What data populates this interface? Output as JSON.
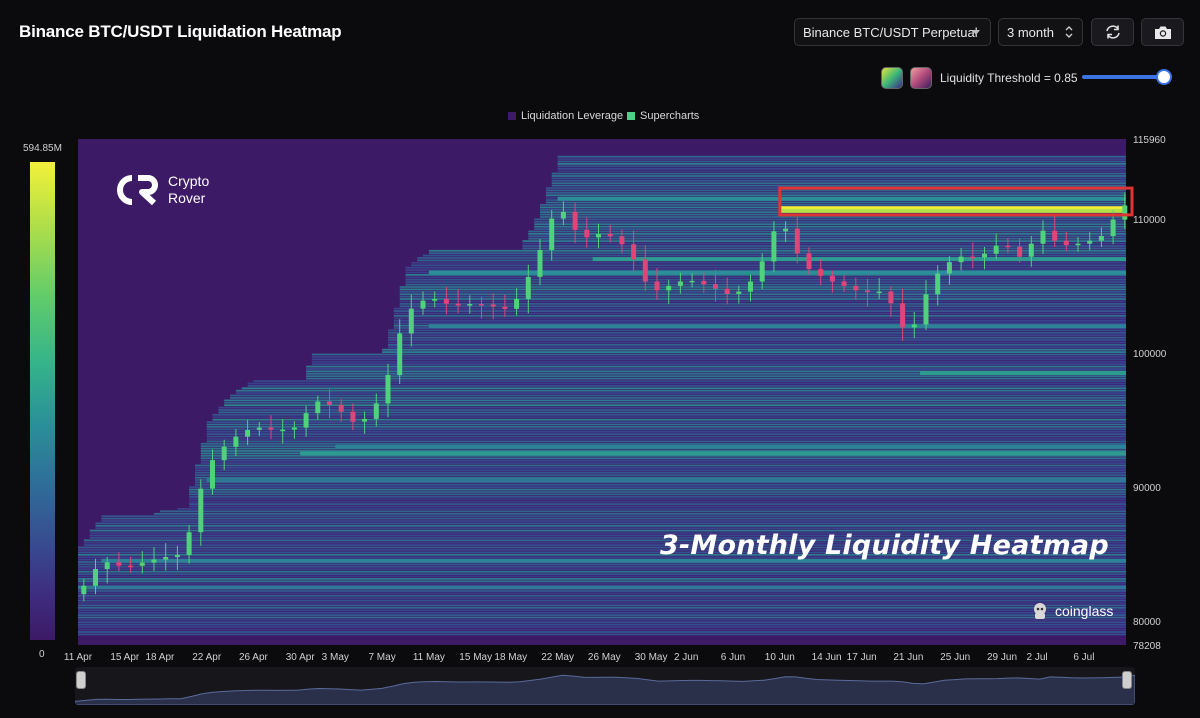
{
  "header": {
    "title": "Binance BTC/USDT Liquidation Heatmap",
    "exchange_select": "Binance BTC/USDT Perpetual",
    "range_select": "3 month",
    "refresh_icon": "refresh-icon",
    "camera_icon": "camera-icon"
  },
  "threshold": {
    "label": "Liquidity Threshold = 0.85",
    "value": 0.85,
    "slider_fraction": 0.95
  },
  "legend": {
    "items": [
      {
        "label": "Liquidation Leverage",
        "color": "#3c1a66"
      },
      {
        "label": "Supercharts",
        "color": "#4fcf8a"
      }
    ]
  },
  "colorbar": {
    "max_label": "594.85M",
    "min_label": "0"
  },
  "overlays": {
    "brand_top": "Crypto",
    "brand_bottom": "Rover",
    "heading": "3-Monthly Liquidity Heatmap",
    "watermark": "coinglass"
  },
  "chart_data": {
    "type": "heatmap",
    "title": "",
    "xlabel": "",
    "ylabel": "",
    "x_tick_labels": [
      "11 Apr",
      "15 Apr",
      "18 Apr",
      "22 Apr",
      "26 Apr",
      "30 Apr",
      "3 May",
      "7 May",
      "11 May",
      "15 May",
      "18 May",
      "22 May",
      "26 May",
      "30 May",
      "2 Jun",
      "6 Jun",
      "10 Jun",
      "14 Jun",
      "17 Jun",
      "21 Jun",
      "25 Jun",
      "29 Jun",
      "2 Jul",
      "6 Jul"
    ],
    "y_tick_labels": [
      "115960",
      "110000",
      "100000",
      "90000",
      "80000",
      "78208"
    ],
    "ylim": [
      78208,
      115960
    ],
    "colorscale": {
      "min": 0,
      "max": "594.85M",
      "low_color": "#3c1a66",
      "high_color": "#f2f13a"
    },
    "price_close_series": [
      {
        "date": "11 Apr",
        "close": 82000
      },
      {
        "date": "13 Apr",
        "close": 84500
      },
      {
        "date": "15 Apr",
        "close": 84000
      },
      {
        "date": "18 Apr",
        "close": 84700
      },
      {
        "date": "20 Apr",
        "close": 85000
      },
      {
        "date": "22 Apr",
        "close": 91500
      },
      {
        "date": "24 Apr",
        "close": 93500
      },
      {
        "date": "26 Apr",
        "close": 94500
      },
      {
        "date": "28 Apr",
        "close": 94200
      },
      {
        "date": "30 Apr",
        "close": 94500
      },
      {
        "date": "1 May",
        "close": 96500
      },
      {
        "date": "3 May",
        "close": 96000
      },
      {
        "date": "5 May",
        "close": 94500
      },
      {
        "date": "7 May",
        "close": 96800
      },
      {
        "date": "9 May",
        "close": 103000
      },
      {
        "date": "11 May",
        "close": 104200
      },
      {
        "date": "13 May",
        "close": 103500
      },
      {
        "date": "15 May",
        "close": 103700
      },
      {
        "date": "18 May",
        "close": 103200
      },
      {
        "date": "20 May",
        "close": 106500
      },
      {
        "date": "22 May",
        "close": 111200
      },
      {
        "date": "24 May",
        "close": 108500
      },
      {
        "date": "26 May",
        "close": 109000
      },
      {
        "date": "28 May",
        "close": 107800
      },
      {
        "date": "30 May",
        "close": 104500
      },
      {
        "date": "2 Jun",
        "close": 105500
      },
      {
        "date": "4 Jun",
        "close": 105000
      },
      {
        "date": "6 Jun",
        "close": 104200
      },
      {
        "date": "8 Jun",
        "close": 105700
      },
      {
        "date": "10 Jun",
        "close": 110200
      },
      {
        "date": "12 Jun",
        "close": 106500
      },
      {
        "date": "14 Jun",
        "close": 105500
      },
      {
        "date": "17 Jun",
        "close": 104500
      },
      {
        "date": "19 Jun",
        "close": 104600
      },
      {
        "date": "21 Jun",
        "close": 101000
      },
      {
        "date": "23 Jun",
        "close": 105500
      },
      {
        "date": "25 Jun",
        "close": 107200
      },
      {
        "date": "27 Jun",
        "close": 107100
      },
      {
        "date": "29 Jun",
        "close": 108300
      },
      {
        "date": "1 Jul",
        "close": 106800
      },
      {
        "date": "2 Jul",
        "close": 109500
      },
      {
        "date": "4 Jul",
        "close": 108000
      },
      {
        "date": "6 Jul",
        "close": 108200
      },
      {
        "date": "8 Jul",
        "close": 108900
      },
      {
        "date": "9 Jul",
        "close": 111000
      }
    ],
    "liquidation_bands": [
      {
        "price": 110800,
        "intensity": 1.0,
        "from": "10 Jun",
        "to": "9 Jul"
      },
      {
        "price": 110600,
        "intensity": 0.92,
        "from": "10 Jun",
        "to": "9 Jul"
      },
      {
        "price": 111500,
        "intensity": 0.55,
        "from": "22 May",
        "to": "9 Jul"
      },
      {
        "price": 107000,
        "intensity": 0.6,
        "from": "25 May",
        "to": "9 Jul"
      },
      {
        "price": 106000,
        "intensity": 0.55,
        "from": "11 May",
        "to": "9 Jul"
      },
      {
        "price": 102000,
        "intensity": 0.5,
        "from": "11 May",
        "to": "9 Jul"
      },
      {
        "price": 98500,
        "intensity": 0.6,
        "from": "22 Jun",
        "to": "9 Jul"
      },
      {
        "price": 93000,
        "intensity": 0.5,
        "from": "3 May",
        "to": "9 Jul"
      },
      {
        "price": 92500,
        "intensity": 0.6,
        "from": "30 Apr",
        "to": "9 Jul"
      },
      {
        "price": 90500,
        "intensity": 0.45,
        "from": "22 Apr",
        "to": "9 Jul"
      },
      {
        "price": 84500,
        "intensity": 0.5,
        "from": "13 Apr",
        "to": "9 Jul"
      },
      {
        "price": 82500,
        "intensity": 0.45,
        "from": "11 Apr",
        "to": "9 Jul"
      }
    ],
    "highlight": {
      "from": "10 Jun",
      "to": "9 Jul",
      "price_low": 110300,
      "price_high": 112300,
      "color": "#e03333"
    }
  }
}
